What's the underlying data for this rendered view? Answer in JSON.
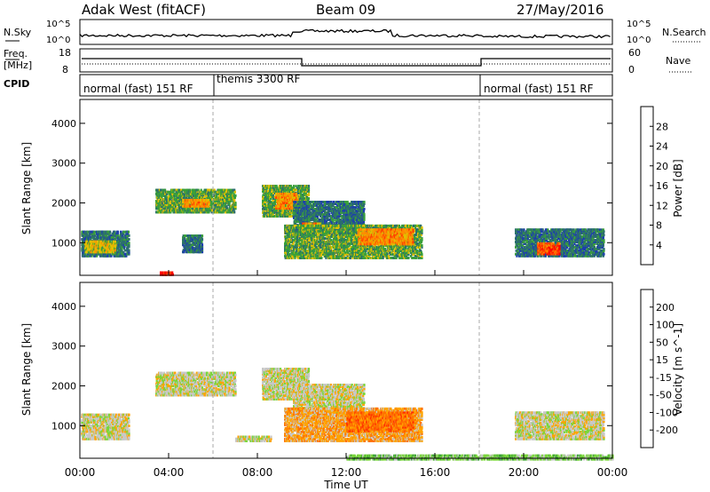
{
  "header": {
    "station": "Adak West (fitACF)",
    "beam": "Beam 09",
    "date": "27/May/2016"
  },
  "noise_panel": {
    "left_label": "N.Sky",
    "right_label": "N.Search",
    "ticks_top": "10^5",
    "ticks_bottom": "10^0"
  },
  "freq_panel": {
    "left_label_1": "Freq.",
    "left_label_2": "[MHz]",
    "right_label": "Nave",
    "left_ticks": [
      "18",
      "8"
    ],
    "right_ticks": [
      "60",
      "0"
    ]
  },
  "cpid_panel": {
    "label": "CPID",
    "modes": [
      "normal (fast) 151 RF",
      "themis 3300 RF",
      "normal (fast) 151 RF"
    ]
  },
  "chart_data": [
    {
      "type": "heatmap",
      "name": "power",
      "ylabel": "Slant Range [km]",
      "ylim": [
        180,
        4600
      ],
      "yticks": [
        "1000",
        "2000",
        "3000",
        "4000"
      ],
      "colorbar_label": "Power [dB]",
      "colorbar_ticks": [
        "4",
        "8",
        "12",
        "16",
        "20",
        "24",
        "28"
      ],
      "colors": [
        "#0000ff",
        "#1d3db0",
        "#2c6e6e",
        "#3aa03a",
        "#e0c000",
        "#ff8c00",
        "#ff4000",
        "#ff0000"
      ],
      "segments": [
        {
          "t0": 0.05,
          "t1": 2.2,
          "r0": 700,
          "r1": 1350,
          "level": 2
        },
        {
          "t0": 0.2,
          "t1": 1.6,
          "r0": 800,
          "r1": 1100,
          "level": 4
        },
        {
          "t0": 3.4,
          "t1": 7.0,
          "r0": 1800,
          "r1": 2400,
          "level": 3
        },
        {
          "t0": 4.6,
          "t1": 5.8,
          "r0": 1950,
          "r1": 2150,
          "level": 5
        },
        {
          "t0": 8.2,
          "t1": 10.3,
          "r0": 1700,
          "r1": 2500,
          "level": 3
        },
        {
          "t0": 8.8,
          "t1": 9.8,
          "r0": 1900,
          "r1": 2300,
          "level": 5
        },
        {
          "t0": 9.6,
          "t1": 12.8,
          "r0": 1300,
          "r1": 2100,
          "level": 2
        },
        {
          "t0": 10.0,
          "t1": 10.8,
          "r0": 1300,
          "r1": 1550,
          "level": 5
        },
        {
          "t0": 9.2,
          "t1": 15.4,
          "r0": 650,
          "r1": 1500,
          "level": 3
        },
        {
          "t0": 12.5,
          "t1": 15.0,
          "r0": 1000,
          "r1": 1400,
          "level": 5
        },
        {
          "t0": 4.6,
          "t1": 5.5,
          "r0": 800,
          "r1": 1250,
          "level": 2
        },
        {
          "t0": 19.6,
          "t1": 23.6,
          "r0": 700,
          "r1": 1400,
          "level": 2
        },
        {
          "t0": 20.6,
          "t1": 21.6,
          "r0": 750,
          "r1": 1050,
          "level": 6
        },
        {
          "t0": 3.6,
          "t1": 4.2,
          "r0": 230,
          "r1": 330,
          "level": 7
        }
      ]
    },
    {
      "type": "heatmap",
      "name": "velocity",
      "ylabel": "Slant Range [km]",
      "ylim": [
        180,
        4600
      ],
      "yticks": [
        "1000",
        "2000",
        "3000",
        "4000"
      ],
      "colorbar_label": "Velocity [m s^-1]",
      "colorbar_ticks": [
        "200",
        "100",
        "50",
        "15",
        "-15",
        "-50",
        "-100",
        "-200"
      ],
      "colors": [
        "#1a1acc",
        "#2c6e6e",
        "#3aa03a",
        "#7ad63a",
        "#c8c8c8",
        "#ffa500",
        "#ff7000",
        "#ff3000",
        "#e00000"
      ],
      "segments": [
        {
          "t0": 0.05,
          "t1": 2.2,
          "r0": 700,
          "r1": 1350,
          "level": 4
        },
        {
          "t0": 3.4,
          "t1": 7.0,
          "r0": 1800,
          "r1": 2400,
          "level": 4
        },
        {
          "t0": 8.2,
          "t1": 10.3,
          "r0": 1700,
          "r1": 2500,
          "level": 4
        },
        {
          "t0": 9.6,
          "t1": 12.8,
          "r0": 1300,
          "r1": 2100,
          "level": 4
        },
        {
          "t0": 9.2,
          "t1": 15.4,
          "r0": 650,
          "r1": 1500,
          "level": 5
        },
        {
          "t0": 12.0,
          "t1": 15.0,
          "r0": 900,
          "r1": 1400,
          "level": 6
        },
        {
          "t0": 19.6,
          "t1": 23.6,
          "r0": 700,
          "r1": 1400,
          "level": 4
        },
        {
          "t0": 7.0,
          "t1": 8.6,
          "r0": 650,
          "r1": 800,
          "level": 4
        },
        {
          "t0": 12.0,
          "t1": 24.0,
          "r0": 190,
          "r1": 320,
          "level": 3
        }
      ]
    }
  ],
  "xaxis": {
    "label": "Time UT",
    "ticks": [
      "00:00",
      "04:00",
      "08:00",
      "12:00",
      "16:00",
      "20:00",
      "00:00"
    ],
    "range": [
      0,
      24
    ],
    "mode_change_times": [
      6,
      18
    ]
  }
}
